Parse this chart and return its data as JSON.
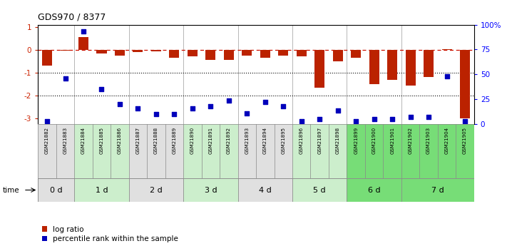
{
  "title": "GDS970 / 8377",
  "samples": [
    "GSM21882",
    "GSM21883",
    "GSM21884",
    "GSM21885",
    "GSM21886",
    "GSM21887",
    "GSM21888",
    "GSM21889",
    "GSM21890",
    "GSM21891",
    "GSM21892",
    "GSM21893",
    "GSM21894",
    "GSM21895",
    "GSM21896",
    "GSM21897",
    "GSM21898",
    "GSM21899",
    "GSM21900",
    "GSM21901",
    "GSM21902",
    "GSM21903",
    "GSM21904",
    "GSM21905"
  ],
  "log_ratio": [
    -0.7,
    -0.05,
    0.55,
    -0.15,
    -0.25,
    -0.1,
    -0.08,
    -0.35,
    -0.3,
    -0.45,
    -0.45,
    -0.25,
    -0.35,
    -0.25,
    -0.3,
    -1.65,
    -0.5,
    -0.35,
    -1.5,
    -1.3,
    -1.55,
    -1.2,
    0.02,
    -3.0
  ],
  "percentile_rank": [
    3,
    46,
    93,
    35,
    20,
    16,
    10,
    10,
    16,
    18,
    24,
    11,
    22,
    18,
    3,
    5,
    14,
    3,
    5,
    5,
    7,
    7,
    48,
    3
  ],
  "time_groups": [
    {
      "label": "0 d",
      "start": 0,
      "end": 2,
      "color": "#e0e0e0"
    },
    {
      "label": "1 d",
      "start": 2,
      "end": 5,
      "color": "#cceecc"
    },
    {
      "label": "2 d",
      "start": 5,
      "end": 8,
      "color": "#e0e0e0"
    },
    {
      "label": "3 d",
      "start": 8,
      "end": 11,
      "color": "#cceecc"
    },
    {
      "label": "4 d",
      "start": 11,
      "end": 14,
      "color": "#e0e0e0"
    },
    {
      "label": "5 d",
      "start": 14,
      "end": 17,
      "color": "#cceecc"
    },
    {
      "label": "6 d",
      "start": 17,
      "end": 20,
      "color": "#77dd77"
    },
    {
      "label": "7 d",
      "start": 20,
      "end": 24,
      "color": "#77dd77"
    }
  ],
  "bar_color": "#bb2200",
  "dot_color": "#0000bb",
  "zero_line_color": "#cc1100",
  "ylim_left": [
    -3.25,
    1.1
  ],
  "ylim_right": [
    0,
    100
  ],
  "yticks_left": [
    -3,
    -2,
    -1,
    0,
    1
  ],
  "yticks_right": [
    0,
    25,
    50,
    75,
    100
  ],
  "ytick_right_labels": [
    "0",
    "25",
    "50",
    "75",
    "100%"
  ],
  "legend_log_ratio": "log ratio",
  "legend_percentile": "percentile rank within the sample",
  "time_label": "time"
}
